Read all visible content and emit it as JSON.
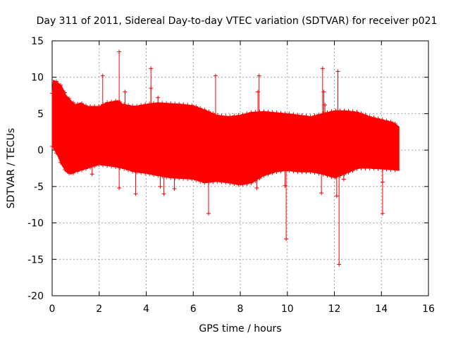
{
  "chart_data": {
    "type": "scatter",
    "title": "Day 311 of 2011, Sidereal Day-to-day VTEC variation (SDTVAR) for receiver p021",
    "xlabel": "GPS time / hours",
    "ylabel": "SDTVAR / TECUs",
    "xlim": [
      0,
      16
    ],
    "ylim": [
      -20,
      15
    ],
    "xticks": [
      0,
      2,
      4,
      6,
      8,
      10,
      12,
      14,
      16
    ],
    "yticks": [
      -20,
      -15,
      -10,
      -5,
      0,
      5,
      10,
      15
    ],
    "xtick_labels": [
      "0",
      "2",
      "4",
      "6",
      "8",
      "10",
      "12",
      "14",
      "16"
    ],
    "ytick_labels": [
      "-20",
      "-15",
      "-10",
      "-5",
      "0",
      "5",
      "10",
      "15"
    ],
    "grid": true,
    "marker": "plus",
    "series": [
      {
        "name": "p021",
        "color": "#ff0000",
        "envelope_upper": [
          [
            0.0,
            7.8
          ],
          [
            0.05,
            9.6
          ],
          [
            0.2,
            9.4
          ],
          [
            0.4,
            8.8
          ],
          [
            0.6,
            7.5
          ],
          [
            0.8,
            6.8
          ],
          [
            1.0,
            6.2
          ],
          [
            1.2,
            6.5
          ],
          [
            1.5,
            6.0
          ],
          [
            2.0,
            6.0
          ],
          [
            2.3,
            6.5
          ],
          [
            2.8,
            6.8
          ],
          [
            3.0,
            6.3
          ],
          [
            3.5,
            6.0
          ],
          [
            4.0,
            6.3
          ],
          [
            4.5,
            6.5
          ],
          [
            5.5,
            6.3
          ],
          [
            6.0,
            6.1
          ],
          [
            6.5,
            5.5
          ],
          [
            7.0,
            4.8
          ],
          [
            7.5,
            4.6
          ],
          [
            8.0,
            4.8
          ],
          [
            8.5,
            5.2
          ],
          [
            9.0,
            5.3
          ],
          [
            10.0,
            5.0
          ],
          [
            10.5,
            4.8
          ],
          [
            11.0,
            4.6
          ],
          [
            11.5,
            5.0
          ],
          [
            12.0,
            5.4
          ],
          [
            12.5,
            5.4
          ],
          [
            13.0,
            5.2
          ],
          [
            13.5,
            4.6
          ],
          [
            14.0,
            4.2
          ],
          [
            14.5,
            3.8
          ],
          [
            14.75,
            3.2
          ]
        ],
        "envelope_lower": [
          [
            0.0,
            0.5
          ],
          [
            0.2,
            -0.5
          ],
          [
            0.4,
            -2.0
          ],
          [
            0.6,
            -3.0
          ],
          [
            0.8,
            -3.3
          ],
          [
            1.0,
            -3.0
          ],
          [
            1.5,
            -2.5
          ],
          [
            2.0,
            -2.0
          ],
          [
            2.5,
            -2.2
          ],
          [
            3.0,
            -2.5
          ],
          [
            3.5,
            -3.0
          ],
          [
            4.0,
            -3.2
          ],
          [
            4.5,
            -3.5
          ],
          [
            5.0,
            -3.8
          ],
          [
            5.5,
            -3.9
          ],
          [
            6.0,
            -4.0
          ],
          [
            6.5,
            -4.5
          ],
          [
            7.0,
            -4.3
          ],
          [
            7.5,
            -4.5
          ],
          [
            8.0,
            -4.8
          ],
          [
            8.5,
            -4.5
          ],
          [
            9.0,
            -3.5
          ],
          [
            9.5,
            -3.0
          ],
          [
            10.0,
            -2.8
          ],
          [
            10.5,
            -3.0
          ],
          [
            11.0,
            -3.0
          ],
          [
            11.5,
            -3.3
          ],
          [
            12.0,
            -3.8
          ],
          [
            12.5,
            -3.2
          ],
          [
            13.0,
            -2.5
          ],
          [
            13.5,
            -2.5
          ],
          [
            14.0,
            -2.6
          ],
          [
            14.5,
            -2.7
          ],
          [
            14.75,
            -2.8
          ]
        ],
        "spikes": [
          [
            2.85,
            13.5
          ],
          [
            2.85,
            -5.2
          ],
          [
            2.15,
            10.2
          ],
          [
            4.2,
            11.2
          ],
          [
            4.2,
            8.5
          ],
          [
            4.5,
            7.2
          ],
          [
            3.1,
            8.0
          ],
          [
            3.55,
            -6.0
          ],
          [
            4.75,
            -6.0
          ],
          [
            5.2,
            -5.3
          ],
          [
            6.65,
            -8.7
          ],
          [
            6.95,
            10.2
          ],
          [
            8.8,
            10.2
          ],
          [
            8.75,
            8.0
          ],
          [
            8.7,
            -5.2
          ],
          [
            9.9,
            -4.9
          ],
          [
            9.95,
            -12.2
          ],
          [
            11.5,
            11.2
          ],
          [
            11.55,
            8.0
          ],
          [
            11.45,
            -5.9
          ],
          [
            12.15,
            10.8
          ],
          [
            12.2,
            -15.7
          ],
          [
            12.1,
            -6.3
          ],
          [
            14.05,
            -4.4
          ],
          [
            14.05,
            -8.7
          ],
          [
            11.6,
            6.2
          ],
          [
            12.4,
            -4.0
          ],
          [
            4.6,
            -5.0
          ],
          [
            1.7,
            -3.3
          ],
          [
            12.9,
            4.0
          ]
        ]
      }
    ]
  }
}
